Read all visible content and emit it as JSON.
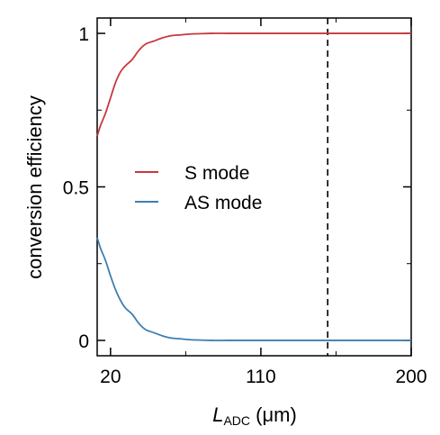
{
  "chart_data": {
    "type": "line",
    "title": "",
    "xlabel_main": "L",
    "xlabel_sub": "ADC",
    "xlabel_unit": " (μm)",
    "ylabel": "conversion efficiency",
    "xlim": [
      12,
      200
    ],
    "ylim": [
      -0.05,
      1.05
    ],
    "xticks": [
      20,
      110,
      200
    ],
    "xtick_labels": [
      "20",
      "110",
      "200"
    ],
    "yticks": [
      0,
      0.5,
      1
    ],
    "ytick_labels": [
      "0",
      "0.5",
      "1"
    ],
    "minor_xticks": [
      65,
      155
    ],
    "minor_yticks": [
      0.25,
      0.75
    ],
    "vline_x": 150,
    "legend_position": "center-left",
    "series": [
      {
        "name": "S mode",
        "color": "#c8383c",
        "x": [
          12,
          14,
          17,
          20,
          23,
          26,
          29,
          33,
          37,
          41,
          46,
          51,
          56,
          62,
          68,
          74,
          80,
          90,
          100,
          120,
          150,
          200
        ],
        "y": [
          0.665,
          0.7,
          0.74,
          0.79,
          0.84,
          0.875,
          0.895,
          0.915,
          0.945,
          0.965,
          0.975,
          0.985,
          0.992,
          0.995,
          0.998,
          0.999,
          1.0,
          1.0,
          1.0,
          1.0,
          1.0,
          1.0
        ]
      },
      {
        "name": "AS mode",
        "color": "#3d7fb0",
        "x": [
          12,
          14,
          17,
          20,
          23,
          26,
          29,
          33,
          37,
          41,
          46,
          51,
          56,
          62,
          68,
          74,
          80,
          90,
          100,
          120,
          150,
          200
        ],
        "y": [
          0.335,
          0.3,
          0.26,
          0.21,
          0.165,
          0.13,
          0.105,
          0.085,
          0.055,
          0.035,
          0.025,
          0.015,
          0.008,
          0.005,
          0.002,
          0.001,
          0.0,
          0.0,
          0.0,
          0.0,
          0.0,
          0.0
        ]
      }
    ]
  }
}
